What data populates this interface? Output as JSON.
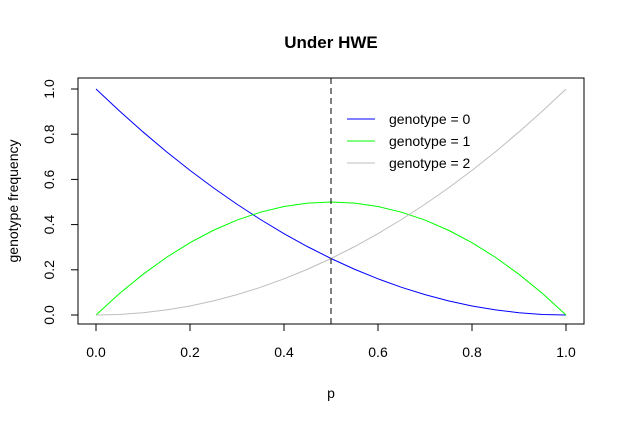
{
  "chart_data": {
    "type": "line",
    "title": "Under HWE",
    "xlabel": "p",
    "ylabel": "genotype frequency",
    "xlim": [
      0,
      1
    ],
    "ylim": [
      0,
      1
    ],
    "x_ticks": [
      "0.0",
      "0.2",
      "0.4",
      "0.6",
      "0.8",
      "1.0"
    ],
    "y_ticks": [
      "0.0",
      "0.2",
      "0.4",
      "0.6",
      "0.8",
      "1.0"
    ],
    "x": [
      0.0,
      0.05,
      0.1,
      0.15,
      0.2,
      0.25,
      0.3,
      0.35,
      0.4,
      0.45,
      0.5,
      0.55,
      0.6,
      0.65,
      0.7,
      0.75,
      0.8,
      0.85,
      0.9,
      0.95,
      1.0
    ],
    "series": [
      {
        "name": "genotype = 0",
        "color": "#0000ff",
        "values": [
          1.0,
          0.9025,
          0.81,
          0.7225,
          0.64,
          0.5625,
          0.49,
          0.4225,
          0.36,
          0.3025,
          0.25,
          0.2025,
          0.16,
          0.1225,
          0.09,
          0.0625,
          0.04,
          0.0225,
          0.01,
          0.0025,
          0.0
        ]
      },
      {
        "name": "genotype = 1",
        "color": "#00ff00",
        "values": [
          0.0,
          0.095,
          0.18,
          0.255,
          0.32,
          0.375,
          0.42,
          0.455,
          0.48,
          0.495,
          0.5,
          0.495,
          0.48,
          0.455,
          0.42,
          0.375,
          0.32,
          0.255,
          0.18,
          0.095,
          0.0
        ]
      },
      {
        "name": "genotype = 2",
        "color": "#bebebe",
        "values": [
          0.0,
          0.0025,
          0.01,
          0.0225,
          0.04,
          0.0625,
          0.09,
          0.1225,
          0.16,
          0.2025,
          0.25,
          0.3025,
          0.36,
          0.4225,
          0.49,
          0.5625,
          0.64,
          0.7225,
          0.81,
          0.9025,
          1.0
        ]
      }
    ],
    "reference_line": {
      "axis": "x",
      "value": 0.5,
      "style": "dashed"
    },
    "legend_position": "top-right",
    "grid": false
  }
}
